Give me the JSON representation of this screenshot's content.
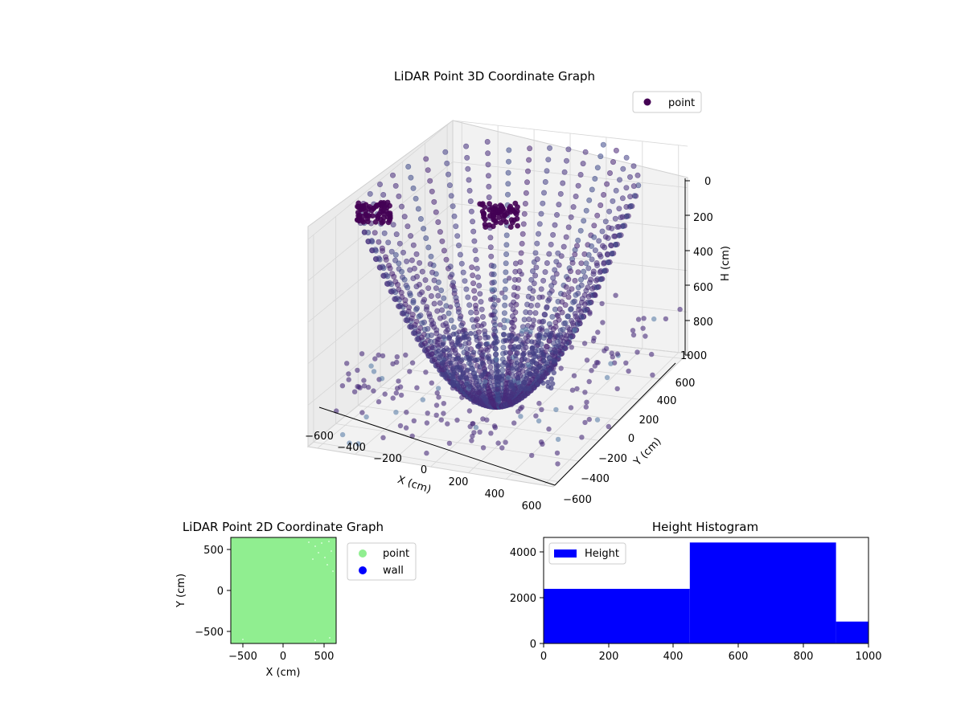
{
  "chart_data": [
    {
      "type": "scatter",
      "projection": "3d",
      "title": "LiDAR Point 3D Coordinate Graph",
      "xlabel": "X (cm)",
      "ylabel": "Y (cm)",
      "zlabel": "H (cm)",
      "xlim": [
        -650,
        650
      ],
      "ylim": [
        -650,
        650
      ],
      "zlim": [
        1000,
        0
      ],
      "z_inverted": true,
      "x_ticks": [
        "−600",
        "−400",
        "−200",
        "0",
        "200",
        "400",
        "600"
      ],
      "y_ticks": [
        "−600",
        "−400",
        "−200",
        "0",
        "200",
        "400",
        "600"
      ],
      "z_ticks": [
        "0",
        "200",
        "400",
        "600",
        "800",
        "1000"
      ],
      "grid": true,
      "legend": {
        "position": "top-right",
        "entries": [
          {
            "label": "point",
            "color": "#440154"
          }
        ]
      },
      "series": [
        {
          "name": "point",
          "color": "#440154",
          "colormap": "viridis"
        }
      ],
      "description_of_shape": "bowl of radial scan lines from center toward all directions; dense cluster near bottom center; walls and scattered points"
    },
    {
      "type": "scatter",
      "title": "LiDAR Point 2D Coordinate Graph",
      "xlabel": "X (cm)",
      "ylabel": "Y (cm)",
      "xlim": [
        -650,
        650
      ],
      "ylim": [
        -650,
        650
      ],
      "x_ticks": [
        "−500",
        "0",
        "500"
      ],
      "y_ticks": [
        "−500",
        "0",
        "500"
      ],
      "grid": false,
      "legend": {
        "position": "outside-right",
        "entries": [
          {
            "label": "point",
            "color": "#90ee90"
          },
          {
            "label": "wall",
            "color": "#0000ff"
          }
        ]
      },
      "series": [
        {
          "name": "point",
          "color": "#90ee90",
          "coverage": "fills the full square"
        },
        {
          "name": "wall",
          "color": "#0000ff",
          "count_visible": 0
        }
      ]
    },
    {
      "type": "bar",
      "title": "Height Histogram",
      "xlabel": "",
      "ylabel": "",
      "bin_edges": [
        0,
        450,
        900,
        1000
      ],
      "values": [
        2370,
        4380,
        950
      ],
      "xlim": [
        0,
        1000
      ],
      "ylim": [
        0,
        4600
      ],
      "x_ticks": [
        "0",
        "200",
        "400",
        "600",
        "800",
        "1000"
      ],
      "y_ticks": [
        "0",
        "2000",
        "4000"
      ],
      "color": "#0000ff",
      "legend": {
        "position": "top-left",
        "entries": [
          {
            "label": "Height",
            "color": "#0000ff"
          }
        ]
      }
    }
  ]
}
